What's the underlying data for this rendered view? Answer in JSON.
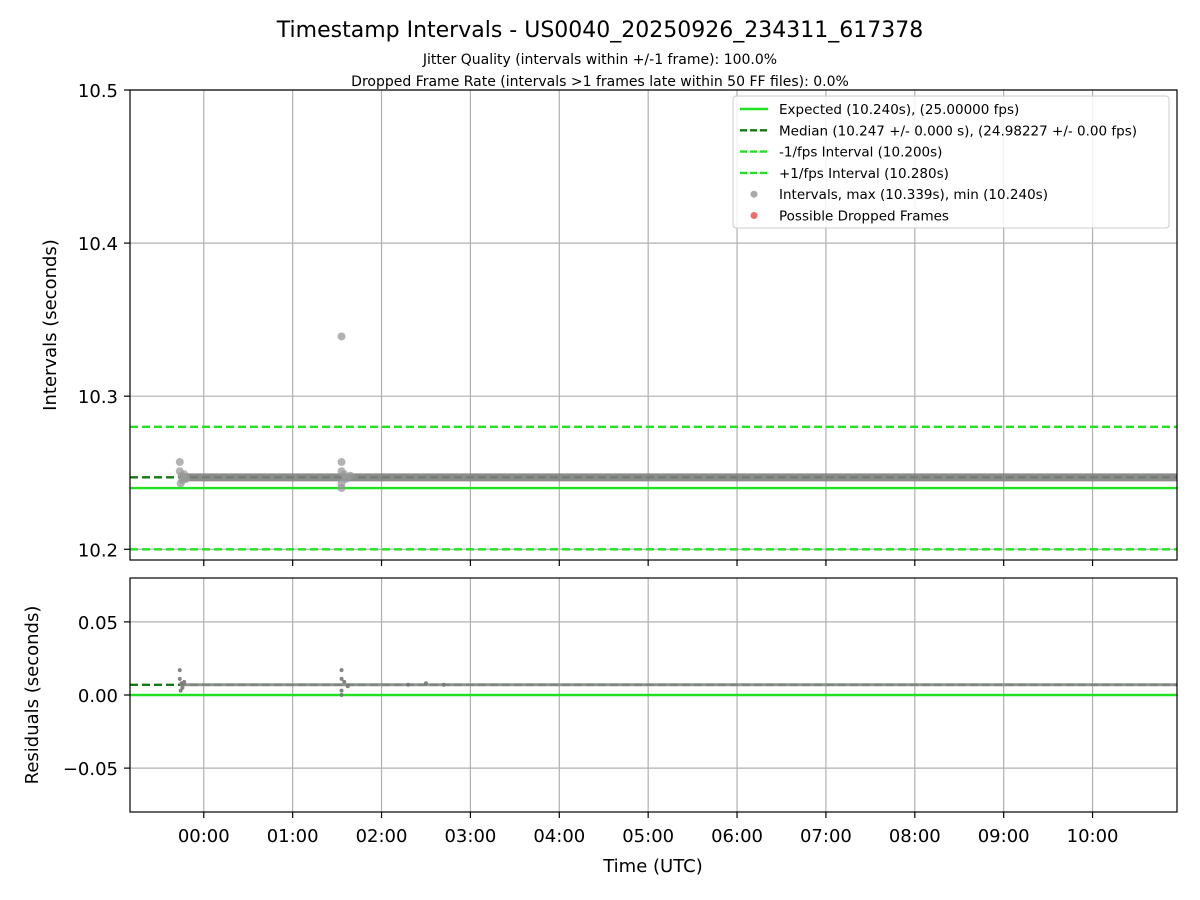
{
  "chart_data": [
    {
      "type": "scatter",
      "title": "Timestamp Intervals - US0040_20250926_234311_617378",
      "subtitle_lines": [
        "Jitter Quality (intervals within +/-1 frame): 100.0%",
        "Dropped Frame Rate (intervals >1 frames late within 50 FF files): 0.0%"
      ],
      "xlabel": "",
      "ylabel": "Intervals (seconds)",
      "xlim_hours": [
        -0.83,
        10.95
      ],
      "ylim": [
        10.193,
        10.5
      ],
      "yticks": [
        10.2,
        10.3,
        10.4,
        10.5
      ],
      "ytick_labels": [
        "10.2",
        "10.3",
        "10.4",
        "10.5"
      ],
      "grid": true,
      "legend_position": "top-right",
      "reference_lines": [
        {
          "name": "Expected (10.240s), (25.00000 fps)",
          "y": 10.24,
          "style": "solid",
          "color": "#22e022"
        },
        {
          "name": "Median (10.247 +/- 0.000 s), (24.98227 +/- 0.00 fps)",
          "y": 10.247,
          "style": "dashed",
          "color": "#117a11"
        },
        {
          "name": "-1/fps Interval (10.200s)",
          "y": 10.2,
          "style": "dashed",
          "color": "#22e022"
        },
        {
          "name": "+1/fps Interval (10.280s)",
          "y": 10.28,
          "style": "dashed",
          "color": "#22e022"
        }
      ],
      "series": [
        {
          "name": "Intervals, max (10.339s), min (10.240s)",
          "color": "#999999",
          "baseline_y": 10.247,
          "x_range_hours": [
            -0.27,
            10.95
          ],
          "points": [
            {
              "x": -0.27,
              "y": 10.257
            },
            {
              "x": -0.27,
              "y": 10.251
            },
            {
              "x": -0.26,
              "y": 10.243
            },
            {
              "x": -0.25,
              "y": 10.248
            },
            {
              "x": -0.24,
              "y": 10.245
            },
            {
              "x": -0.22,
              "y": 10.249
            },
            {
              "x": -0.2,
              "y": 10.246
            },
            {
              "x": 1.55,
              "y": 10.339
            },
            {
              "x": 1.55,
              "y": 10.257
            },
            {
              "x": 1.55,
              "y": 10.251
            },
            {
              "x": 1.55,
              "y": 10.243
            },
            {
              "x": 1.55,
              "y": 10.24
            },
            {
              "x": 1.58,
              "y": 10.249
            },
            {
              "x": 1.6,
              "y": 10.246
            },
            {
              "x": 1.65,
              "y": 10.248
            }
          ]
        },
        {
          "name": "Possible Dropped Frames",
          "color": "#f05050",
          "points": []
        }
      ]
    },
    {
      "type": "scatter",
      "xlabel": "Time (UTC)",
      "ylabel": "Residuals (seconds)",
      "xlim_hours": [
        -0.83,
        10.95
      ],
      "ylim": [
        -0.08,
        0.08
      ],
      "yticks": [
        -0.05,
        0.0,
        0.05
      ],
      "ytick_labels": [
        "−0.05",
        "0.00",
        "0.05"
      ],
      "xticks_hours": [
        0,
        1,
        2,
        3,
        4,
        5,
        6,
        7,
        8,
        9,
        10
      ],
      "xtick_labels": [
        "00:00",
        "01:00",
        "02:00",
        "03:00",
        "04:00",
        "05:00",
        "06:00",
        "07:00",
        "08:00",
        "09:00",
        "10:00"
      ],
      "grid": true,
      "reference_lines": [
        {
          "y": 0.0,
          "style": "solid",
          "color": "#22e022"
        },
        {
          "y": 0.007,
          "style": "dashed",
          "color": "#117a11"
        }
      ],
      "series": [
        {
          "color": "#777777",
          "baseline_y": 0.007,
          "x_range_hours": [
            -0.27,
            10.95
          ],
          "points": [
            {
              "x": -0.27,
              "y": 0.017
            },
            {
              "x": -0.27,
              "y": 0.011
            },
            {
              "x": -0.26,
              "y": 0.003
            },
            {
              "x": -0.25,
              "y": 0.008
            },
            {
              "x": -0.24,
              "y": 0.005
            },
            {
              "x": -0.22,
              "y": 0.009
            },
            {
              "x": 1.55,
              "y": 0.017
            },
            {
              "x": 1.55,
              "y": 0.011
            },
            {
              "x": 1.55,
              "y": 0.003
            },
            {
              "x": 1.55,
              "y": 0.0
            },
            {
              "x": 1.58,
              "y": 0.009
            },
            {
              "x": 1.62,
              "y": 0.006
            },
            {
              "x": 2.3,
              "y": 0.007
            },
            {
              "x": 2.5,
              "y": 0.008
            },
            {
              "x": 2.7,
              "y": 0.007
            }
          ]
        }
      ]
    }
  ]
}
